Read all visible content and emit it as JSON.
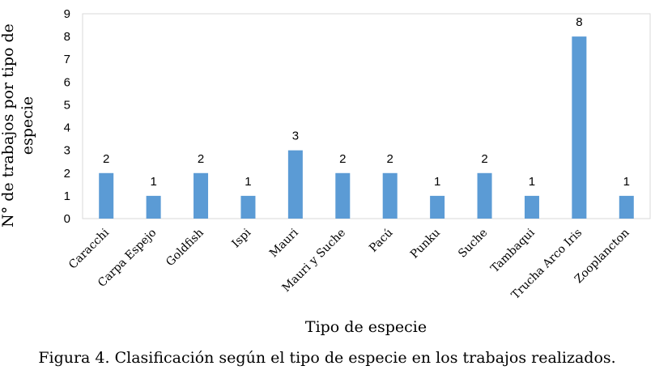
{
  "chart_data": {
    "type": "bar",
    "categories": [
      "Caracchi",
      "Carpa Espejo",
      "Goldfish",
      "Ispi",
      "Mauri",
      "Mauri y Suche",
      "Pacú",
      "Punku",
      "Suche",
      "Tambaqui",
      "Trucha Arco Iris",
      "Zooplancton"
    ],
    "values": [
      2,
      1,
      2,
      1,
      3,
      2,
      2,
      1,
      2,
      1,
      8,
      1
    ],
    "ylabel": "N° de trabajos por tipo de especie",
    "xlabel": "Tipo de especie",
    "ylim": [
      0,
      9
    ],
    "yticks": [
      0,
      1,
      2,
      3,
      4,
      5,
      6,
      7,
      8,
      9
    ],
    "bar_color": "#5b9bd5",
    "grid": false,
    "legend": "none"
  },
  "caption": "Figura 4. Clasificación según el tipo de especie en los trabajos realizados."
}
